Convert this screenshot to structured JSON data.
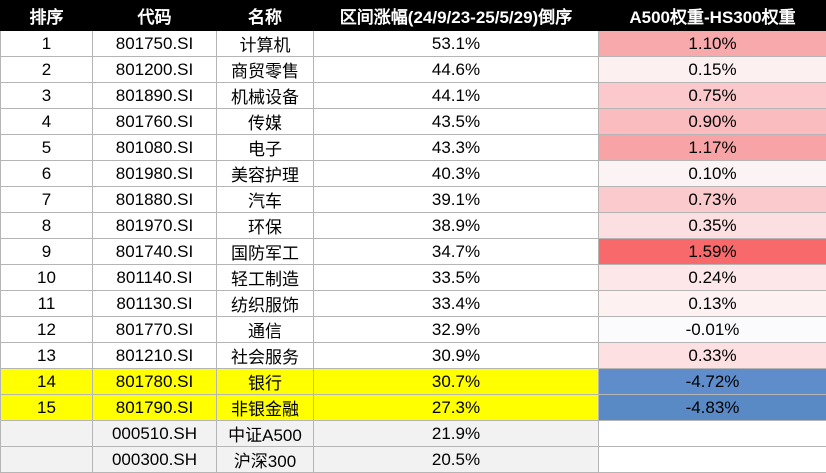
{
  "headers": [
    "排序",
    "代码",
    "名称",
    "区间涨幅(24/9/23-25/5/29)倒序",
    "A500权重-HS300权重"
  ],
  "rows": [
    {
      "rank": "1",
      "code": "801750.SI",
      "name": "计算机",
      "change": "53.1%",
      "weight": "1.10%",
      "weight_color": "#f8a9ac",
      "highlight": false
    },
    {
      "rank": "2",
      "code": "801200.SI",
      "name": "商贸零售",
      "change": "44.6%",
      "weight": "0.15%",
      "weight_color": "#fdf0f1",
      "highlight": false
    },
    {
      "rank": "3",
      "code": "801890.SI",
      "name": "机械设备",
      "change": "44.1%",
      "weight": "0.75%",
      "weight_color": "#fbc9cb",
      "highlight": false
    },
    {
      "rank": "4",
      "code": "801760.SI",
      "name": "传媒",
      "change": "43.5%",
      "weight": "0.90%",
      "weight_color": "#fabcbe",
      "highlight": false
    },
    {
      "rank": "5",
      "code": "801080.SI",
      "name": "电子",
      "change": "43.3%",
      "weight": "1.17%",
      "weight_color": "#f8a4a6",
      "highlight": false
    },
    {
      "rank": "6",
      "code": "801980.SI",
      "name": "美容护理",
      "change": "40.3%",
      "weight": "0.10%",
      "weight_color": "#fcf3f4",
      "highlight": false
    },
    {
      "rank": "7",
      "code": "801880.SI",
      "name": "汽车",
      "change": "39.1%",
      "weight": "0.73%",
      "weight_color": "#fbcacc",
      "highlight": false
    },
    {
      "rank": "8",
      "code": "801970.SI",
      "name": "环保",
      "change": "38.9%",
      "weight": "0.35%",
      "weight_color": "#fce0e1",
      "highlight": false
    },
    {
      "rank": "9",
      "code": "801740.SI",
      "name": "国防军工",
      "change": "34.7%",
      "weight": "1.59%",
      "weight_color": "#f8696b",
      "highlight": false
    },
    {
      "rank": "10",
      "code": "801140.SI",
      "name": "轻工制造",
      "change": "33.5%",
      "weight": "0.24%",
      "weight_color": "#fde7e8",
      "highlight": false
    },
    {
      "rank": "11",
      "code": "801130.SI",
      "name": "纺织服饰",
      "change": "33.4%",
      "weight": "0.13%",
      "weight_color": "#fdf1f2",
      "highlight": false
    },
    {
      "rank": "12",
      "code": "801770.SI",
      "name": "通信",
      "change": "32.9%",
      "weight": "-0.01%",
      "weight_color": "#fbfbfe",
      "highlight": false
    },
    {
      "rank": "13",
      "code": "801210.SI",
      "name": "社会服务",
      "change": "30.9%",
      "weight": "0.33%",
      "weight_color": "#fde1e2",
      "highlight": false
    },
    {
      "rank": "14",
      "code": "801780.SI",
      "name": "银行",
      "change": "30.7%",
      "weight": "-4.72%",
      "weight_color": "#5f8dcb",
      "highlight": true
    },
    {
      "rank": "15",
      "code": "801790.SI",
      "name": "非银金融",
      "change": "27.3%",
      "weight": "-4.83%",
      "weight_color": "#5a8ac6",
      "highlight": true
    },
    {
      "rank": "",
      "code": "000510.SH",
      "name": "中证A500",
      "change": "21.9%",
      "weight": "",
      "weight_color": "#ffffff",
      "highlight": false,
      "index": true
    },
    {
      "rank": "",
      "code": "000300.SH",
      "name": "沪深300",
      "change": "20.5%",
      "weight": "",
      "weight_color": "#ffffff",
      "highlight": false,
      "index": true
    }
  ],
  "colors": {
    "header_bg": "#000000",
    "header_text": "#ffffff",
    "highlight": "#ffff00",
    "index_row": "#f2f2f2"
  }
}
